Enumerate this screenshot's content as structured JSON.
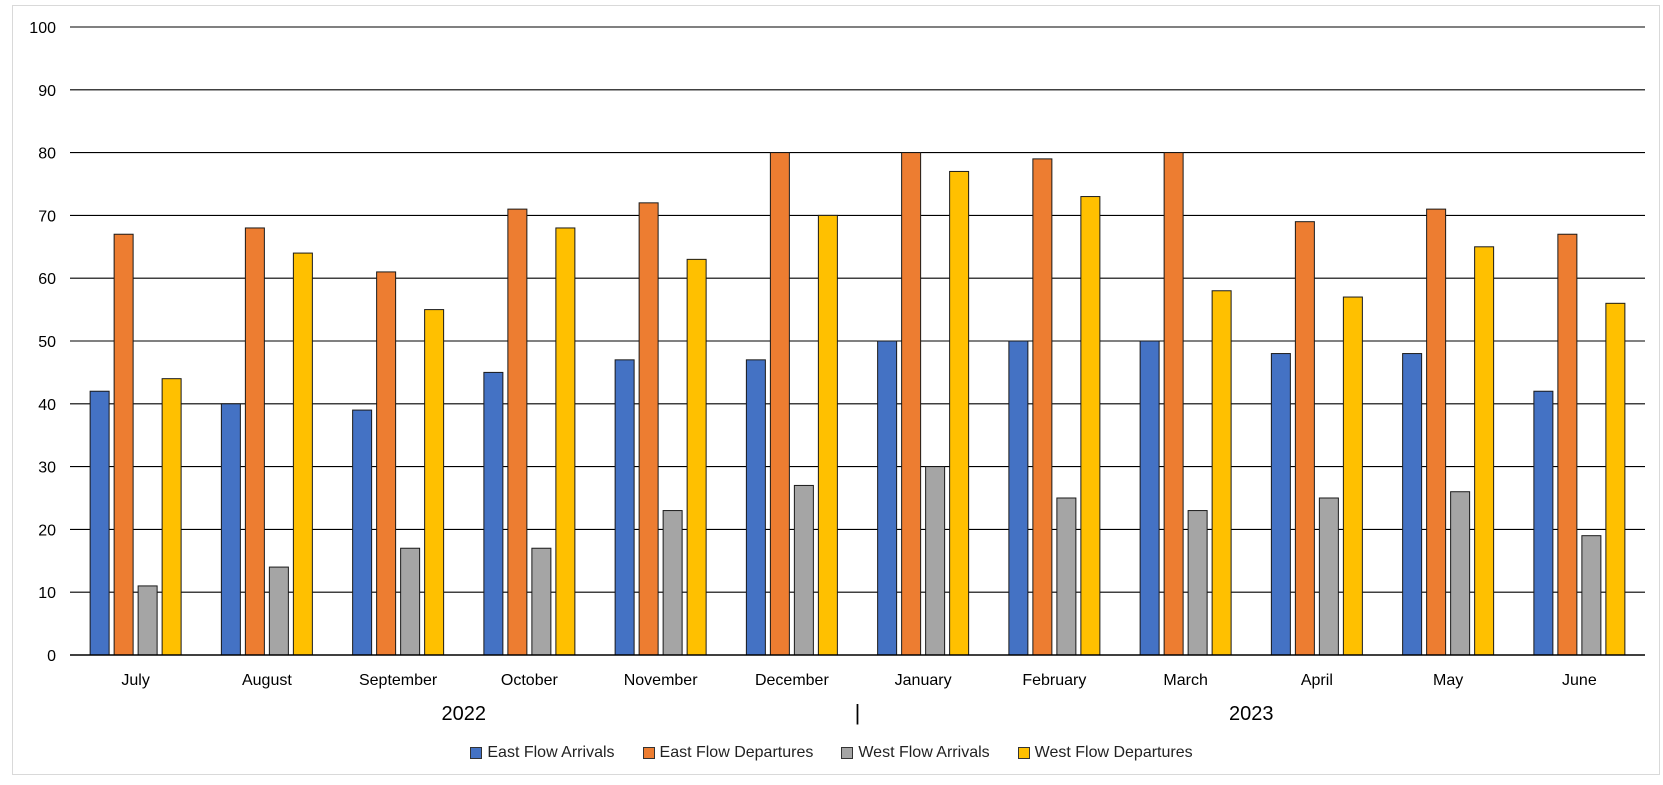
{
  "chart_data": {
    "type": "bar",
    "categories": [
      "July",
      "August",
      "September",
      "October",
      "November",
      "December",
      "January",
      "February",
      "March",
      "April",
      "May",
      "June"
    ],
    "year_labels": [
      "2022",
      "2023"
    ],
    "year_divider": "|",
    "ylim": [
      0,
      100
    ],
    "yticks": [
      0,
      10,
      20,
      30,
      40,
      50,
      60,
      70,
      80,
      90,
      100
    ],
    "grid": true,
    "legend_position": "bottom",
    "series": [
      {
        "name": "East Flow Arrivals",
        "color": "#4472C4",
        "values": [
          42,
          40,
          39,
          45,
          47,
          47,
          50,
          50,
          50,
          48,
          48,
          42
        ]
      },
      {
        "name": "East Flow Departures",
        "color": "#ED7D31",
        "values": [
          67,
          68,
          61,
          71,
          72,
          80,
          80,
          79,
          80,
          69,
          71,
          67
        ]
      },
      {
        "name": "West Flow Arrivals",
        "color": "#A5A5A5",
        "values": [
          11,
          14,
          17,
          17,
          23,
          27,
          30,
          25,
          23,
          25,
          26,
          19
        ]
      },
      {
        "name": "West Flow Departures",
        "color": "#FFC000",
        "values": [
          44,
          64,
          55,
          68,
          63,
          70,
          77,
          73,
          58,
          57,
          65,
          56
        ]
      }
    ]
  }
}
